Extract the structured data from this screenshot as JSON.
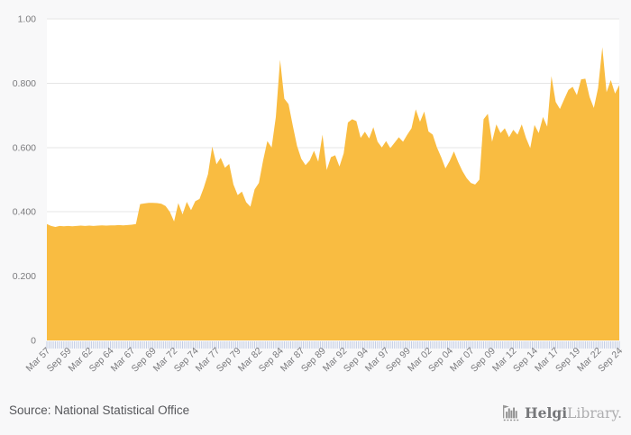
{
  "chart_data": {
    "type": "area",
    "title": "",
    "frequency": "semi-annual",
    "x_start": "Mar 1957",
    "x_end": "Sep 2024",
    "x_tick_labels": [
      "Mar 57",
      "Sep 59",
      "Mar 62",
      "Sep 64",
      "Mar 67",
      "Sep 69",
      "Mar 72",
      "Sep 74",
      "Mar 77",
      "Sep 79",
      "Mar 82",
      "Sep 84",
      "Mar 87",
      "Sep 89",
      "Mar 92",
      "Sep 94",
      "Mar 97",
      "Sep 99",
      "Mar 02",
      "Sep 04",
      "Mar 07",
      "Sep 09",
      "Mar 12",
      "Sep 14",
      "Mar 17",
      "Sep 19",
      "Mar 22",
      "Sep 24"
    ],
    "x_label_every_n_points": 5,
    "values": [
      0.362,
      0.356,
      0.353,
      0.356,
      0.355,
      0.356,
      0.355,
      0.356,
      0.357,
      0.356,
      0.357,
      0.356,
      0.357,
      0.358,
      0.357,
      0.358,
      0.358,
      0.359,
      0.358,
      0.359,
      0.36,
      0.362,
      0.424,
      0.426,
      0.428,
      0.428,
      0.427,
      0.425,
      0.418,
      0.4,
      0.37,
      0.427,
      0.392,
      0.431,
      0.405,
      0.433,
      0.44,
      0.475,
      0.517,
      0.603,
      0.548,
      0.568,
      0.537,
      0.549,
      0.485,
      0.452,
      0.463,
      0.43,
      0.416,
      0.47,
      0.49,
      0.56,
      0.62,
      0.6,
      0.695,
      0.873,
      0.752,
      0.735,
      0.668,
      0.605,
      0.565,
      0.545,
      0.56,
      0.59,
      0.556,
      0.64,
      0.53,
      0.57,
      0.576,
      0.541,
      0.582,
      0.678,
      0.688,
      0.682,
      0.63,
      0.649,
      0.628,
      0.663,
      0.618,
      0.6,
      0.62,
      0.598,
      0.615,
      0.632,
      0.618,
      0.64,
      0.66,
      0.719,
      0.68,
      0.712,
      0.65,
      0.64,
      0.6,
      0.57,
      0.535,
      0.558,
      0.588,
      0.555,
      0.527,
      0.505,
      0.49,
      0.485,
      0.5,
      0.688,
      0.705,
      0.618,
      0.672,
      0.645,
      0.66,
      0.632,
      0.655,
      0.64,
      0.672,
      0.63,
      0.598,
      0.67,
      0.645,
      0.695,
      0.665,
      0.822,
      0.742,
      0.72,
      0.75,
      0.779,
      0.789,
      0.763,
      0.812,
      0.814,
      0.757,
      0.723,
      0.785,
      0.912,
      0.772,
      0.81,
      0.768,
      0.794
    ],
    "ylim": [
      0,
      1
    ],
    "y_ticks": [
      {
        "v": 0,
        "label": "0"
      },
      {
        "v": 0.2,
        "label": "0.200"
      },
      {
        "v": 0.4,
        "label": "0.400"
      },
      {
        "v": 0.6,
        "label": "0.600"
      },
      {
        "v": 0.8,
        "label": "0.800"
      },
      {
        "v": 1,
        "label": "1.00"
      }
    ],
    "grid": true,
    "legend": "none",
    "colors": {
      "fill": "#f9bc41",
      "grid": "#e6e6e6",
      "minor_tick": "#c2cce4",
      "axis_text": "#7a7a7d",
      "plot_bg": "#ffffff",
      "page_bg": "#f8f8f9"
    }
  },
  "source": {
    "label": "Source: National Statistical Office"
  },
  "logo": {
    "brand_bold": "Helgi",
    "brand_light": "Library.",
    "icon_color": "#8f8f8f",
    "bold_color": "#76777a",
    "light_color": "#aeaeb0"
  }
}
